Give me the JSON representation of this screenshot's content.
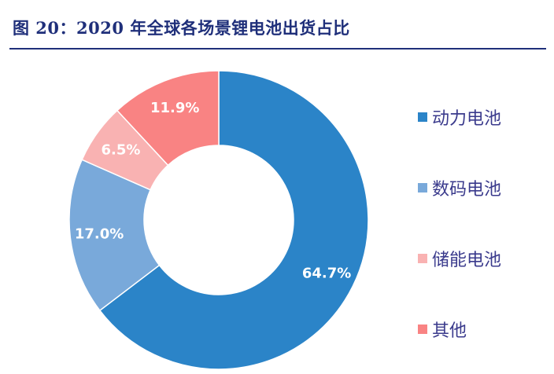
{
  "figure": {
    "title": "图 20：2020 年全球各场景锂电池出货占比"
  },
  "chart_data": {
    "type": "pie",
    "donut": true,
    "categories": [
      "动力电池",
      "数码电池",
      "储能电池",
      "其他"
    ],
    "values": [
      64.7,
      17.0,
      6.5,
      11.9
    ],
    "data_labels": [
      "64.7%",
      "17.0%",
      "6.5%",
      "11.9%"
    ],
    "colors": [
      "#2b84c8",
      "#79a9da",
      "#f9b2b2",
      "#f98383"
    ],
    "start_angle_deg": 0,
    "direction": "clockwise",
    "legend_position": "right"
  }
}
